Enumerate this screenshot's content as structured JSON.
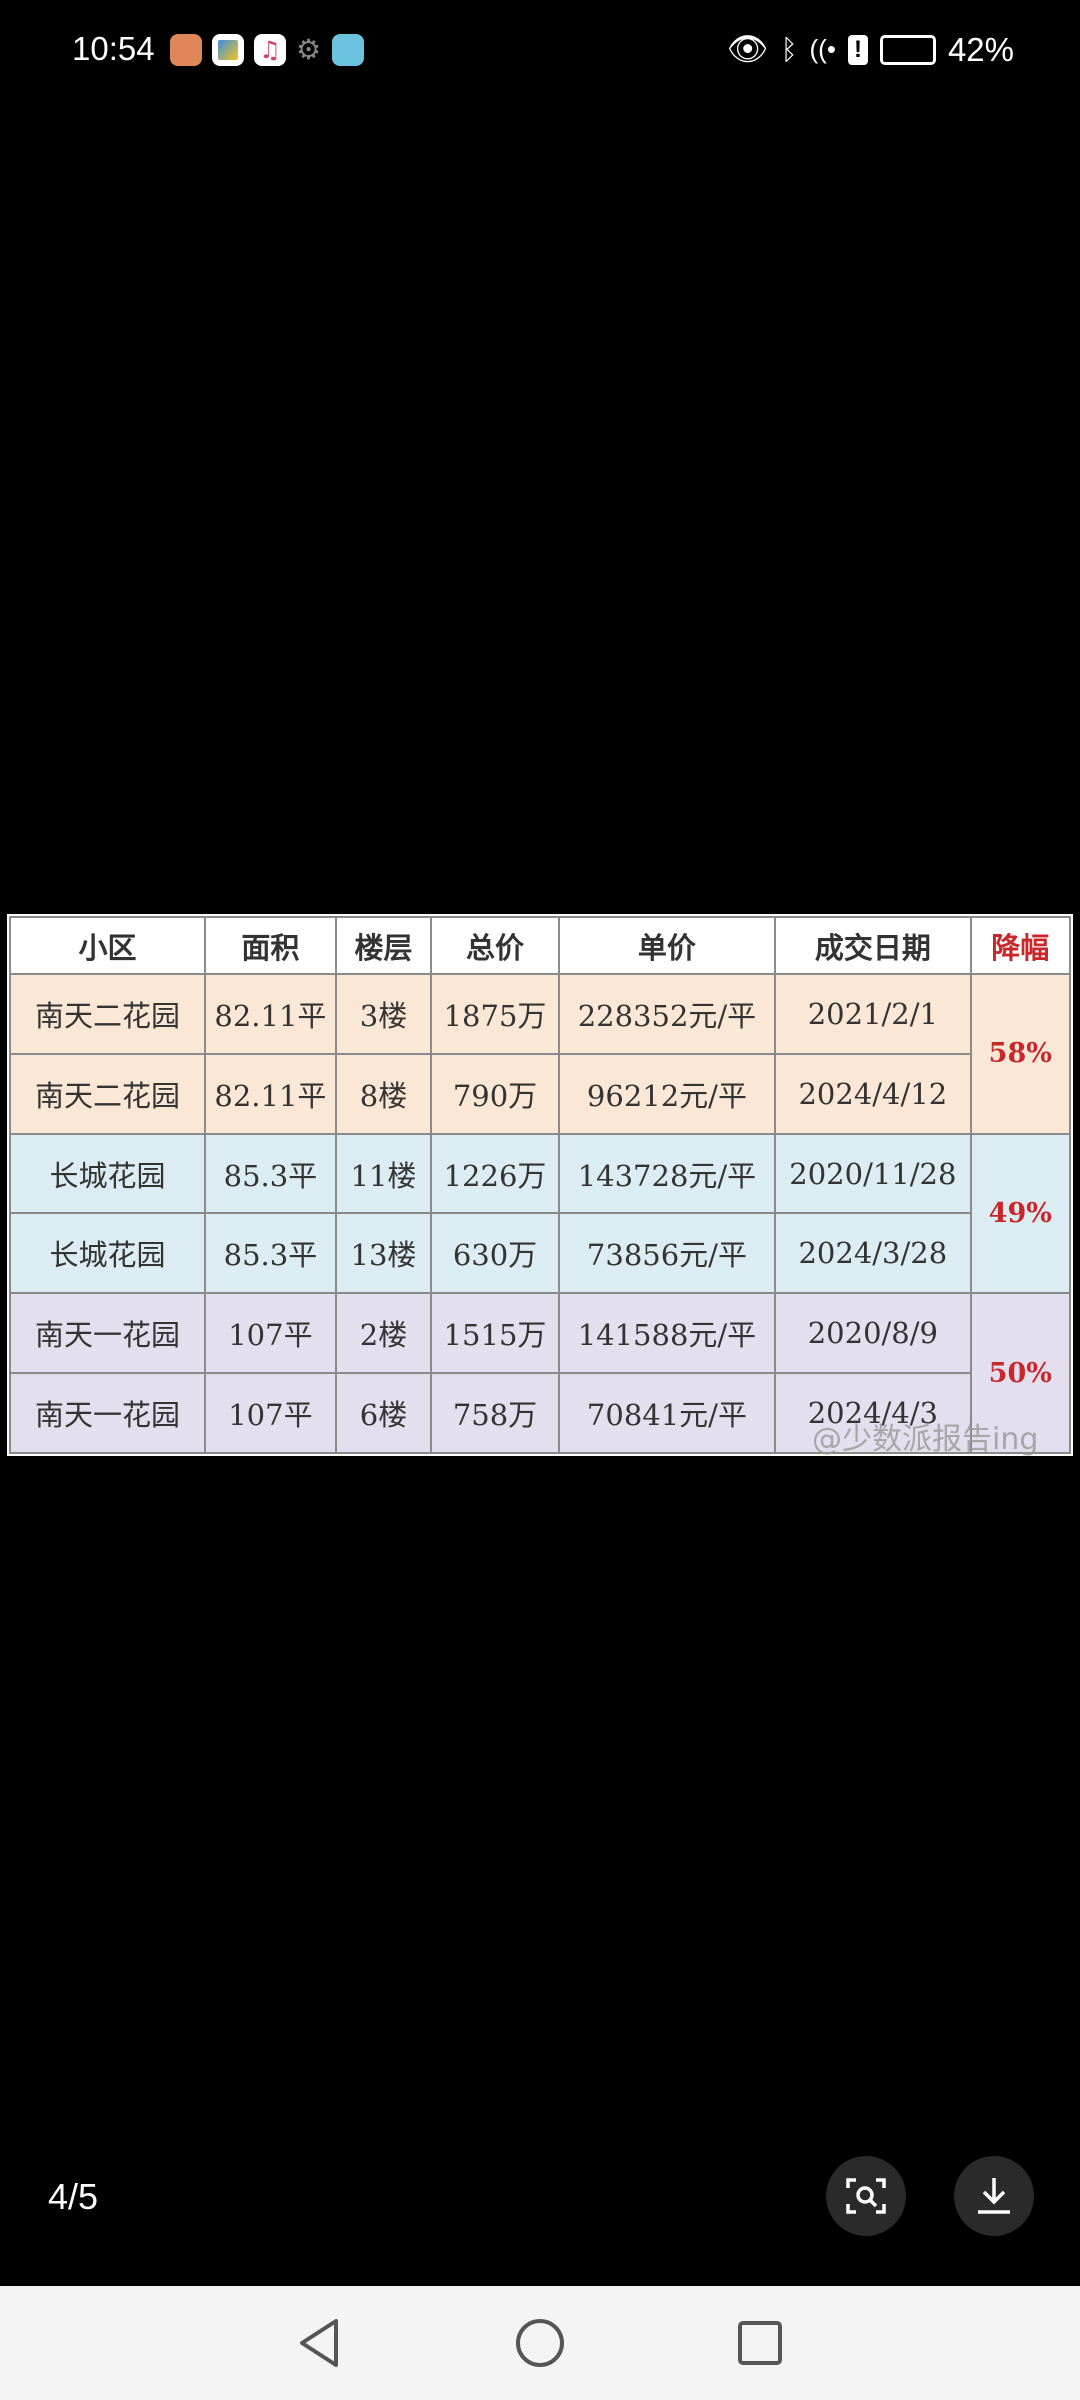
{
  "status_bar": {
    "time": "10:54",
    "battery": "42%",
    "icons": [
      "health-app-icon",
      "browser-app-icon",
      "music-app-icon",
      "gear-icon",
      "book-app-icon",
      "eye-icon",
      "bluetooth-icon",
      "wifi-icon",
      "alert-icon",
      "battery-icon"
    ]
  },
  "table": {
    "headers": [
      "小区",
      "面积",
      "楼层",
      "总价",
      "单价",
      "成交日期",
      "降幅"
    ],
    "rows": [
      [
        "南天二花园",
        "82.11平",
        "3楼",
        "1875万",
        "228352元/平",
        "2021/2/1"
      ],
      [
        "南天二花园",
        "82.11平",
        "8楼",
        "790万",
        "96212元/平",
        "2024/4/12"
      ],
      [
        "长城花园",
        "85.3平",
        "11楼",
        "1226万",
        "143728元/平",
        "2020/11/28"
      ],
      [
        "长城花园",
        "85.3平",
        "13楼",
        "630万",
        "73856元/平",
        "2024/3/28"
      ],
      [
        "南天一花园",
        "107平",
        "2楼",
        "1515万",
        "141588元/平",
        "2020/8/9"
      ],
      [
        "南天一花园",
        "107平",
        "6楼",
        "758万",
        "70841元/平",
        "2024/4/3"
      ]
    ],
    "drops": [
      "58%",
      "49%",
      "50%"
    ],
    "group_colors": [
      "#fbe7d6",
      "#dcecf3",
      "#e3dfee"
    ],
    "accent_red": "#c8282c"
  },
  "watermark": "@少数派报告ing",
  "viewer": {
    "counter": "4/5",
    "buttons": [
      "image-search-icon",
      "download-icon"
    ]
  },
  "nav": {
    "buttons": [
      "back-icon",
      "home-icon",
      "recents-icon"
    ]
  }
}
